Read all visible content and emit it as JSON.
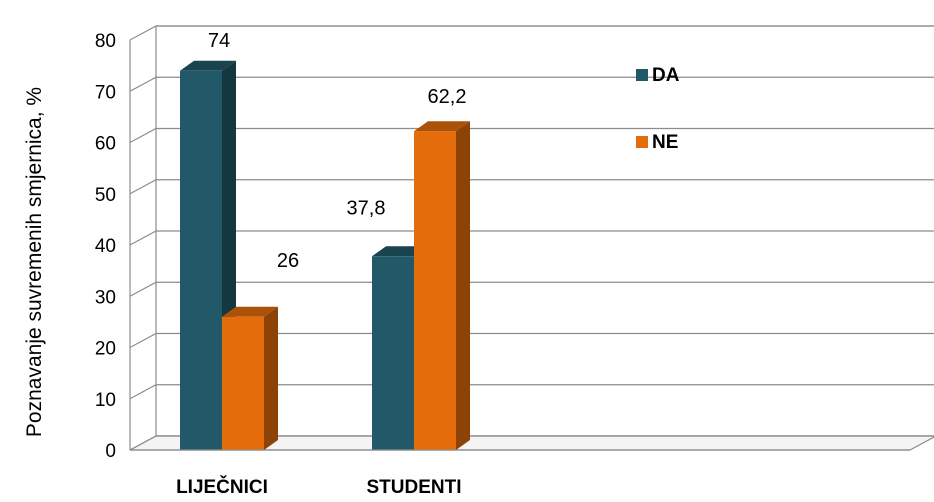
{
  "chart_data": {
    "type": "bar",
    "title": "",
    "xlabel": "",
    "ylabel": "Poznavanje suvremenih smjernica, %",
    "categories": [
      "LIJEČNICI",
      "STUDENTI"
    ],
    "series": [
      {
        "name": "DA",
        "values": [
          74,
          37.8
        ],
        "labels": [
          "74",
          "37,8"
        ],
        "color": "#215968"
      },
      {
        "name": "NE",
        "values": [
          26,
          62.2
        ],
        "labels": [
          "26",
          "62,2"
        ],
        "color": "#e46c0a"
      }
    ],
    "ylim": [
      0,
      80
    ],
    "y_ticks": [
      0,
      10,
      20,
      30,
      40,
      50,
      60,
      70,
      80
    ],
    "grid": true,
    "legend_position": "top-right",
    "style": "3d-column"
  }
}
